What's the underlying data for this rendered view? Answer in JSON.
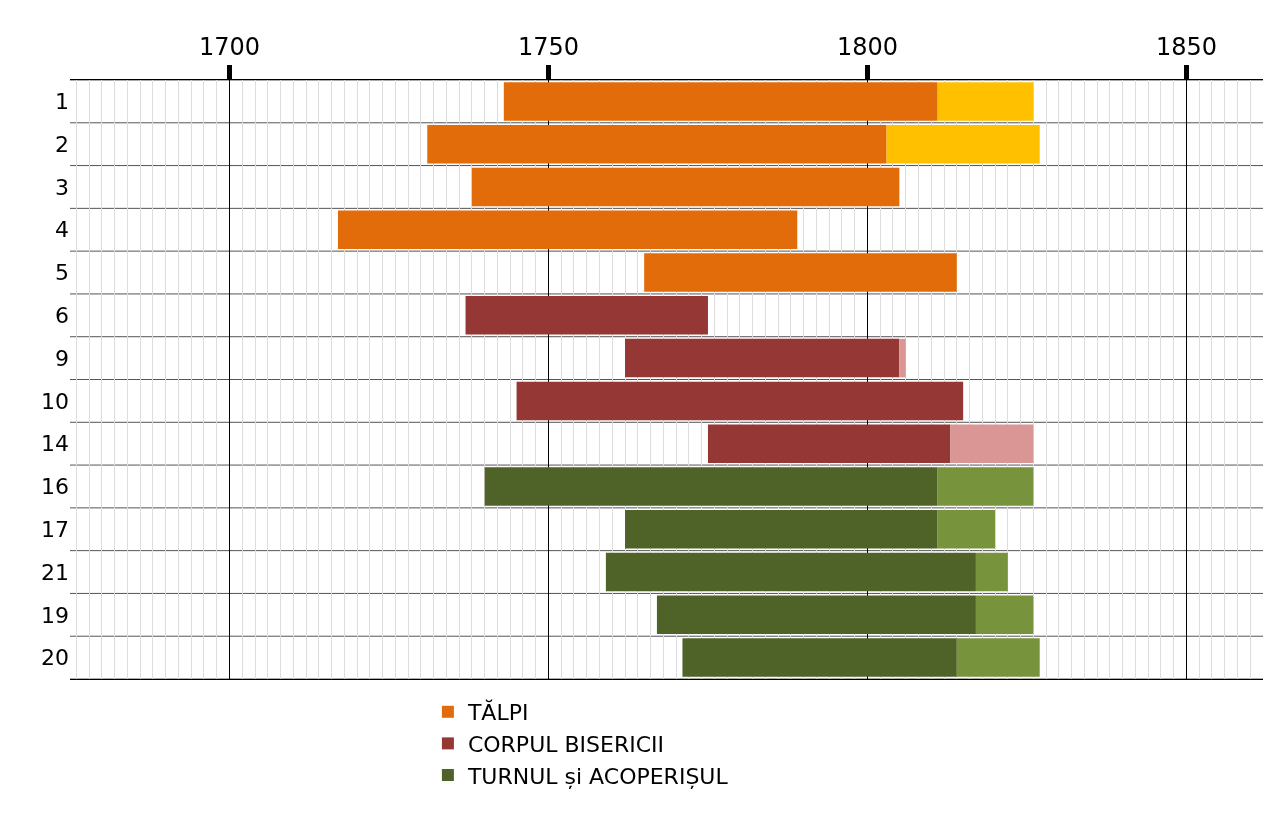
{
  "chart_data": {
    "type": "bar",
    "orientation": "horizontal",
    "categories": [
      "1",
      "2",
      "3",
      "4",
      "5",
      "6",
      "9",
      "10",
      "14",
      "16",
      "17",
      "21",
      "19",
      "20"
    ],
    "series": [
      {
        "name": "TĂLPI",
        "color": "#e36c0a",
        "base": [
          1743,
          1731,
          1738,
          1717,
          1765,
          null,
          null,
          null,
          null,
          null,
          null,
          null,
          null,
          null
        ],
        "values": [
          68,
          72,
          67,
          72,
          49,
          null,
          null,
          null,
          null,
          null,
          null,
          null,
          null,
          null
        ]
      },
      {
        "name": "CORPUL BISERICII",
        "color": "#953735",
        "base": [
          null,
          null,
          null,
          null,
          null,
          1737,
          1762,
          1745,
          1775,
          null,
          null,
          null,
          null,
          null
        ],
        "values": [
          null,
          null,
          null,
          null,
          null,
          38,
          43,
          70,
          38,
          null,
          null,
          null,
          null,
          null
        ]
      },
      {
        "name": "TURNUL și ACOPERIȘUL",
        "color": "#4f6228",
        "base": [
          null,
          null,
          null,
          null,
          null,
          null,
          null,
          null,
          null,
          1740,
          1762,
          1759,
          1767,
          1771
        ],
        "values": [
          null,
          null,
          null,
          null,
          null,
          null,
          null,
          null,
          null,
          71,
          49,
          58,
          50,
          43
        ]
      },
      {
        "color": "#ffc000",
        "base": [
          1811,
          1803,
          null,
          null,
          null,
          null,
          null,
          null,
          null,
          null,
          null,
          null,
          null,
          null
        ],
        "values": [
          15,
          24,
          null,
          null,
          null,
          null,
          null,
          null,
          null,
          null,
          null,
          null,
          null,
          null
        ]
      },
      {
        "color": "#d99694",
        "base": [
          null,
          null,
          null,
          null,
          null,
          null,
          1805,
          null,
          1813,
          null,
          null,
          null,
          null,
          null
        ],
        "values": [
          null,
          null,
          null,
          null,
          null,
          null,
          1,
          null,
          13,
          null,
          null,
          null,
          null,
          null
        ]
      },
      {
        "color": "#77933c",
        "base": [
          null,
          null,
          null,
          null,
          null,
          null,
          null,
          null,
          null,
          1811,
          1811,
          1817,
          1817,
          1814
        ],
        "values": [
          null,
          null,
          null,
          null,
          null,
          null,
          null,
          null,
          null,
          15,
          9,
          5,
          9,
          13
        ]
      }
    ],
    "xlim": [
      1675,
      1862
    ],
    "xticks": [
      1700,
      1750,
      1800,
      1850
    ],
    "grid": "x",
    "legend": "bottom"
  }
}
